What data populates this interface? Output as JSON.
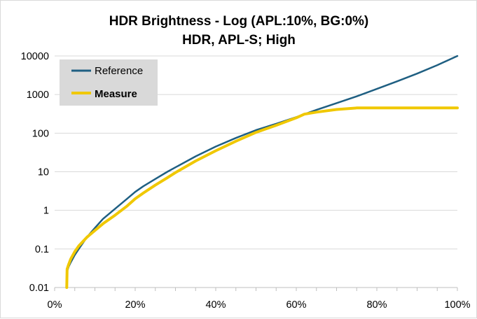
{
  "chart_data": {
    "type": "line",
    "title": "HDR Brightness - Log (APL:10%, BG:0%)",
    "subtitle": "HDR, APL-S; High",
    "xlabel": "",
    "ylabel": "",
    "x_scale": "linear",
    "y_scale": "log",
    "xlim": [
      0,
      100
    ],
    "ylim": [
      0.01,
      10000
    ],
    "x_ticks": [
      "0%",
      "20%",
      "40%",
      "60%",
      "80%",
      "100%"
    ],
    "x_tick_values": [
      0,
      20,
      40,
      60,
      80,
      100
    ],
    "y_ticks": [
      "0.01",
      "0.1",
      "1",
      "10",
      "100",
      "1000",
      "10000"
    ],
    "y_tick_values": [
      0.01,
      0.1,
      1,
      10,
      100,
      1000,
      10000
    ],
    "grid": "horizontal",
    "legend_position": "top-left",
    "series": [
      {
        "name": "Reference",
        "color": "#1f5f82",
        "bold": false,
        "x": [
          3,
          3.5,
          4,
          5,
          6,
          8,
          10,
          12,
          15,
          18,
          20,
          22,
          25,
          28,
          30,
          35,
          40,
          45,
          50,
          55,
          60,
          65,
          70,
          75,
          80,
          85,
          90,
          95,
          100
        ],
        "y": [
          0.025,
          0.035,
          0.045,
          0.07,
          0.1,
          0.2,
          0.35,
          0.6,
          1.1,
          2,
          3,
          4.2,
          6.5,
          10,
          13,
          25,
          45,
          75,
          120,
          175,
          260,
          400,
          600,
          900,
          1400,
          2200,
          3500,
          5800,
          10000
        ]
      },
      {
        "name": "Measure",
        "color": "#f0c800",
        "bold": true,
        "x": [
          3,
          3.1,
          3.5,
          4,
          5,
          6,
          8,
          10,
          12,
          15,
          18,
          20,
          22,
          25,
          28,
          30,
          35,
          40,
          45,
          50,
          55,
          60,
          62,
          65,
          70,
          75,
          80,
          90,
          100
        ],
        "y": [
          0.01,
          0.03,
          0.04,
          0.055,
          0.085,
          0.12,
          0.2,
          0.3,
          0.45,
          0.75,
          1.3,
          2,
          2.8,
          4.5,
          7,
          9.5,
          19,
          35,
          62,
          105,
          160,
          250,
          310,
          350,
          410,
          450,
          450,
          450,
          450
        ]
      }
    ]
  }
}
